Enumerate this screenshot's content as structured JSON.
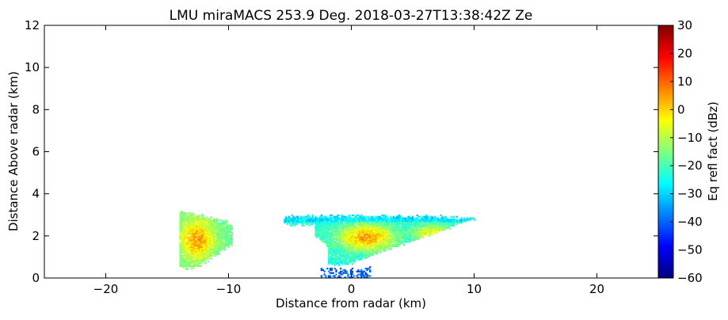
{
  "chart_data": {
    "type": "heatmap",
    "title": "LMU miraMACS 253.9 Deg. 2018-03-27T13:38:42Z  Ze",
    "xlabel": "Distance from radar (km)",
    "ylabel": "Distance Above radar  (km)",
    "xlim": [
      -25,
      25
    ],
    "ylim": [
      0,
      12
    ],
    "x_ticks": [
      -20,
      -10,
      0,
      10,
      20
    ],
    "y_ticks": [
      0,
      2,
      4,
      6,
      8,
      10,
      12
    ],
    "grid": false,
    "colorbar": {
      "label": "Eq refl fact (dBz)",
      "range": [
        -60,
        30
      ],
      "ticks": [
        30,
        20,
        10,
        0,
        -10,
        -20,
        -30,
        -40,
        -50,
        -60
      ],
      "colormap": "jet",
      "colors": [
        "#00007f",
        "#0000ff",
        "#007fff",
        "#00ffff",
        "#7fff7f",
        "#ffff00",
        "#ff7f00",
        "#ff0000",
        "#7f0000"
      ]
    },
    "echo_regions": [
      {
        "name": "left",
        "x_range": [
          -14.0,
          -9.7
        ],
        "height_range": [
          0.4,
          3.2
        ],
        "typical_dbz": -5,
        "core_dbz": 5
      },
      {
        "name": "main",
        "x_range": [
          -5.5,
          10.5
        ],
        "height_range": [
          0.5,
          3.0
        ],
        "typical_dbz": -15,
        "core_dbz": 5
      },
      {
        "name": "near-radar clutter",
        "x_range": [
          -2.5,
          1.5
        ],
        "height_range": [
          0.0,
          0.5
        ],
        "typical_dbz": -40,
        "core_dbz": -35
      }
    ]
  }
}
